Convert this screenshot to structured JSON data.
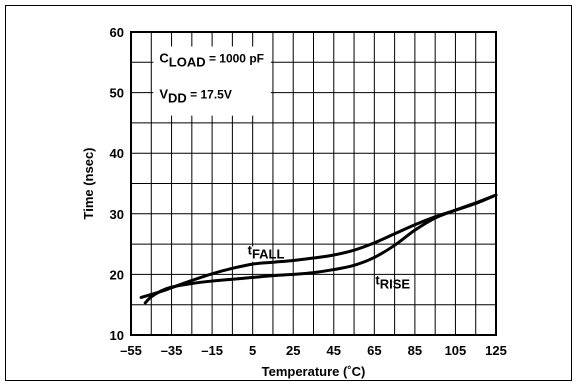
{
  "chart_data": {
    "type": "line",
    "xlabel": "Temperature  (˚C)",
    "ylabel": "Time (nsec)",
    "xlim": [
      -55,
      125
    ],
    "ylim": [
      10,
      60
    ],
    "x_ticks": [
      "–55",
      "–35",
      "–15",
      "5",
      "25",
      "45",
      "65",
      "85",
      "105",
      "125"
    ],
    "y_ticks": [
      "10",
      "20",
      "30",
      "40",
      "50",
      "60"
    ],
    "grid": true,
    "conditions": [
      {
        "main": "C",
        "sub": "LOAD",
        "rest": " = 1000 pF"
      },
      {
        "main": "V",
        "sub": "DD",
        "rest": " = 17.5V"
      }
    ],
    "series": [
      {
        "name": "FALL",
        "label_main": "t",
        "label_sub": "FALL",
        "x": [
          -50,
          -45,
          -40,
          -35,
          -25,
          -15,
          -5,
          5,
          15,
          25,
          35,
          45,
          55,
          65,
          75,
          85,
          95,
          105,
          115,
          125
        ],
        "y": [
          16.2,
          16.7,
          17.2,
          17.8,
          19.0,
          20.1,
          21.0,
          21.7,
          22.0,
          22.3,
          22.7,
          23.2,
          24.0,
          25.2,
          26.7,
          28.2,
          29.5,
          30.6,
          31.7,
          33.1
        ]
      },
      {
        "name": "RISE",
        "label_main": "t",
        "label_sub": "RISE",
        "x": [
          -48,
          -45,
          -40,
          -35,
          -25,
          -15,
          -5,
          5,
          15,
          25,
          35,
          45,
          55,
          65,
          75,
          85,
          95,
          105,
          115,
          125
        ],
        "y": [
          15.3,
          16.3,
          17.3,
          17.9,
          18.5,
          18.9,
          19.2,
          19.5,
          19.8,
          20.0,
          20.3,
          20.8,
          21.5,
          22.8,
          24.8,
          27.3,
          29.3,
          30.6,
          31.8,
          33.1
        ]
      }
    ]
  }
}
